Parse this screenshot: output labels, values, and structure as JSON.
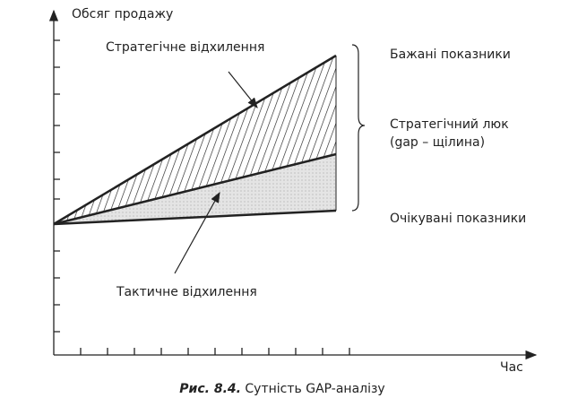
{
  "axes": {
    "y_label": "Обсяг продажу",
    "x_label": "Час"
  },
  "annotations": {
    "strategic": "Стратегічне відхилення",
    "tactical": "Тактичне відхилення"
  },
  "labels": {
    "desired": "Бажані показники",
    "gap_line1": "Стратегічний люк",
    "gap_line2": "(gap – щілина)",
    "expected": "Очікувані показники"
  },
  "caption": {
    "number": "Рис. 8.4.",
    "text": "Сутність GAP-аналізу"
  }
}
